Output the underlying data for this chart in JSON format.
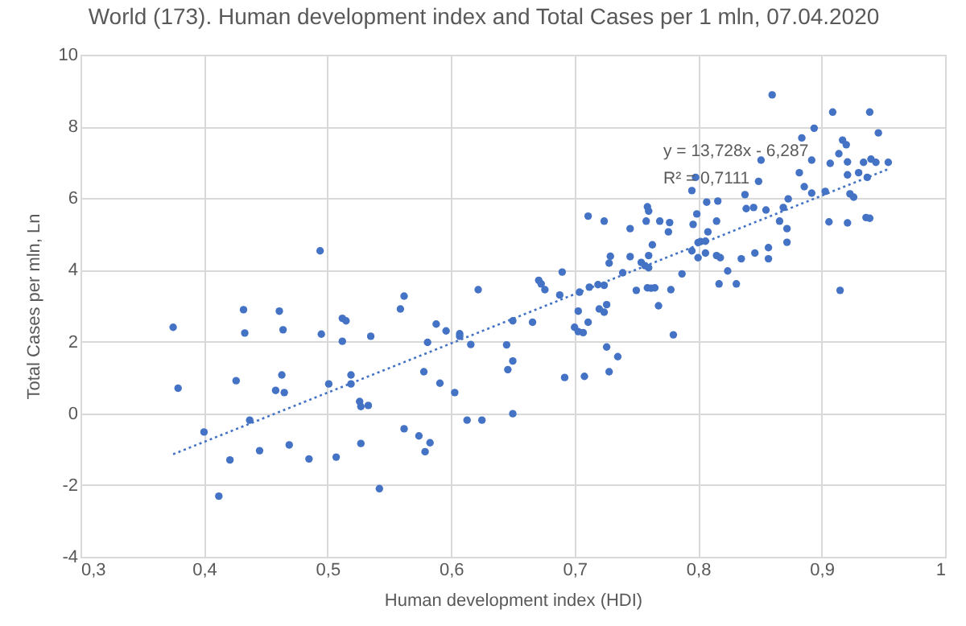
{
  "chart_data": {
    "type": "scatter",
    "title": "World (173). Human development index and Total Cases per 1 mln, 07.04.2020",
    "xlabel": "Human development index (HDI)",
    "ylabel": "Total Cases per mln, Ln",
    "xlim": [
      0.3,
      1
    ],
    "ylim": [
      -4,
      10
    ],
    "xticks": [
      {
        "value": 0.3,
        "label": "0,3"
      },
      {
        "value": 0.4,
        "label": "0,4"
      },
      {
        "value": 0.5,
        "label": "0,5"
      },
      {
        "value": 0.6,
        "label": "0,6"
      },
      {
        "value": 0.7,
        "label": "0,7"
      },
      {
        "value": 0.8,
        "label": "0,8"
      },
      {
        "value": 0.9,
        "label": "0,9"
      },
      1
    ],
    "yticks": [
      -4,
      -2,
      0,
      2,
      4,
      6,
      8,
      10
    ],
    "grid": true,
    "annotations": [
      "y = 13,728x - 6,287",
      "R² = 0,7111"
    ],
    "series": [
      {
        "color": "#4472c4",
        "marker": "circle",
        "x": [
          0.494,
          0.432,
          0.461,
          0.375,
          0.433,
          0.464,
          0.495,
          0.512,
          0.515,
          0.512,
          0.535,
          0.463,
          0.426,
          0.458,
          0.465,
          0.379,
          0.519,
          0.501,
          0.519,
          0.526,
          0.527,
          0.533,
          0.4,
          0.437,
          0.421,
          0.445,
          0.469,
          0.485,
          0.507,
          0.527,
          0.542,
          0.412,
          0.711,
          0.724,
          0.729,
          0.728,
          0.69,
          0.671,
          0.673,
          0.676,
          0.622,
          0.562,
          0.559,
          0.688,
          0.704,
          0.712,
          0.719,
          0.724,
          0.703,
          0.72,
          0.724,
          0.726,
          0.711,
          0.7,
          0.703,
          0.707,
          0.65,
          0.666,
          0.588,
          0.596,
          0.607,
          0.607,
          0.581,
          0.616,
          0.645,
          0.65,
          0.646,
          0.578,
          0.591,
          0.603,
          0.692,
          0.708,
          0.726,
          0.728,
          0.613,
          0.625,
          0.65,
          0.562,
          0.574,
          0.583,
          0.579,
          0.851,
          0.798,
          0.795,
          0.849,
          0.838,
          0.807,
          0.816,
          0.873,
          0.759,
          0.76,
          0.745,
          0.758,
          0.769,
          0.777,
          0.776,
          0.799,
          0.796,
          0.815,
          0.839,
          0.845,
          0.855,
          0.869,
          0.808,
          0.763,
          0.795,
          0.8,
          0.802,
          0.806,
          0.8,
          0.806,
          0.815,
          0.818,
          0.835,
          0.846,
          0.857,
          0.857,
          0.745,
          0.754,
          0.757,
          0.76,
          0.76,
          0.739,
          0.787,
          0.824,
          0.817,
          0.831,
          0.75,
          0.759,
          0.762,
          0.765,
          0.778,
          0.768,
          0.78,
          0.735,
          0.909,
          0.939,
          0.894,
          0.946,
          0.884,
          0.917,
          0.92,
          0.914,
          0.892,
          0.907,
          0.921,
          0.934,
          0.94,
          0.944,
          0.954,
          0.921,
          0.93,
          0.937,
          0.882,
          0.886,
          0.892,
          0.903,
          0.923,
          0.926,
          0.866,
          0.872,
          0.872,
          0.906,
          0.921,
          0.936,
          0.939,
          0.915,
          0.86
        ],
        "values": [
          4.53,
          2.89,
          2.85,
          2.4,
          2.24,
          2.33,
          2.21,
          2.65,
          2.58,
          2.01,
          2.15,
          1.07,
          0.91,
          0.64,
          0.58,
          0.7,
          1.07,
          0.82,
          0.82,
          0.33,
          0.19,
          0.22,
          -0.52,
          -0.19,
          -1.3,
          -1.04,
          -0.88,
          -1.27,
          -1.22,
          -0.84,
          -2.1,
          -2.31,
          5.5,
          5.36,
          4.38,
          4.19,
          3.94,
          3.71,
          3.61,
          3.45,
          3.45,
          3.27,
          2.91,
          3.3,
          3.38,
          3.52,
          3.59,
          3.57,
          2.85,
          2.91,
          2.82,
          3.03,
          2.54,
          2.4,
          2.28,
          2.25,
          2.58,
          2.54,
          2.49,
          2.3,
          2.22,
          2.15,
          1.98,
          1.92,
          1.91,
          1.46,
          1.22,
          1.16,
          0.84,
          0.58,
          1,
          1.03,
          1.85,
          1.16,
          -0.19,
          -0.19,
          -0.01,
          -0.43,
          -0.63,
          -0.82,
          -1.07,
          7.06,
          6.58,
          6.21,
          6.47,
          6.1,
          5.89,
          5.92,
          5.98,
          5.76,
          5.64,
          5.15,
          5.36,
          5.36,
          5.32,
          5.06,
          5.56,
          5.27,
          5.36,
          5.71,
          5.74,
          5.67,
          5.74,
          5.06,
          4.7,
          4.53,
          4.76,
          4.79,
          4.8,
          4.34,
          4.47,
          4.4,
          4.34,
          4.31,
          4.47,
          4.62,
          4.31,
          4.37,
          4.21,
          4.12,
          4.06,
          4.4,
          3.92,
          3.89,
          3.97,
          3.61,
          3.61,
          3.43,
          3.5,
          3.49,
          3.5,
          3.45,
          3,
          2.19,
          1.58,
          8.4,
          8.4,
          7.95,
          7.82,
          7.68,
          7.62,
          7.49,
          7.24,
          7.06,
          6.97,
          7.01,
          7,
          7.09,
          7,
          7,
          6.65,
          6.71,
          6.58,
          6.71,
          6.32,
          6.14,
          6.19,
          6.12,
          6.03,
          5.36,
          5.15,
          4.77,
          5.34,
          5.31,
          5.46,
          5.44,
          3.43,
          8.88
        ]
      },
      {
        "type": "line",
        "color": "#4472c4",
        "line_style": "dotted",
        "x": [
          0.375,
          0.954
        ],
        "values": [
          -1.14,
          6.81
        ]
      }
    ]
  }
}
